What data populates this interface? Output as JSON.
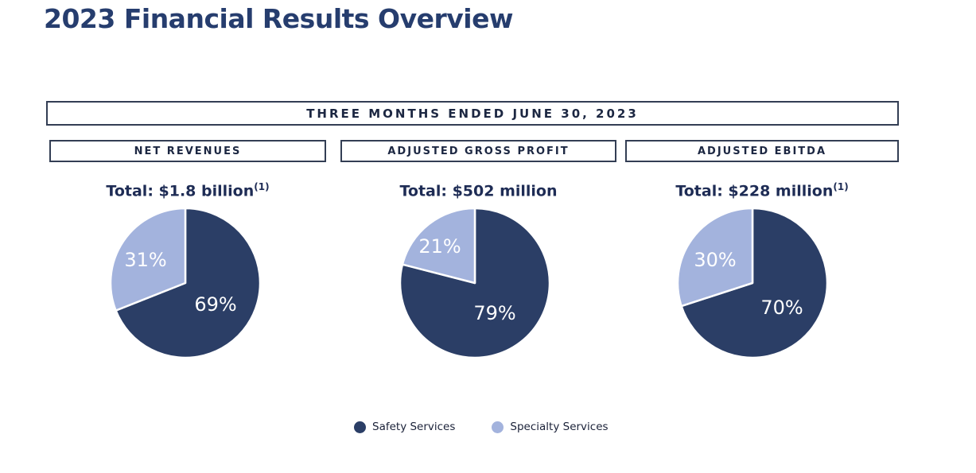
{
  "page": {
    "title": "2023 Financial Results Overview"
  },
  "banner": {
    "label": "THREE MONTHS ENDED JUNE 30, 2023"
  },
  "colors": {
    "safety_services": "#2b3e66",
    "specialty_services": "#a3b3dd",
    "heading_navy": "#1c2742"
  },
  "legend": {
    "items": [
      {
        "label": "Safety Services",
        "color": "#2b3e66"
      },
      {
        "label": "Specialty Services",
        "color": "#a3b3dd"
      }
    ]
  },
  "chart_data": [
    {
      "type": "pie",
      "title": "NET REVENUES",
      "total_label": "Total: $1.8 billion",
      "total_footnote": "(1)",
      "labels": [
        "Safety Services",
        "Specialty Services"
      ],
      "values": [
        69,
        31
      ],
      "unit": "%",
      "colors": [
        "#2b3e66",
        "#a3b3dd"
      ],
      "start_angle_deg": 0,
      "direction": "clockwise",
      "legend_position": "bottom"
    },
    {
      "type": "pie",
      "title": "ADJUSTED GROSS PROFIT",
      "total_label": "Total: $502 million",
      "total_footnote": "",
      "labels": [
        "Safety Services",
        "Specialty Services"
      ],
      "values": [
        79,
        21
      ],
      "unit": "%",
      "colors": [
        "#2b3e66",
        "#a3b3dd"
      ],
      "start_angle_deg": 0,
      "direction": "clockwise",
      "legend_position": "bottom"
    },
    {
      "type": "pie",
      "title": "ADJUSTED EBITDA",
      "total_label": "Total: $228 million",
      "total_footnote": "(1)",
      "labels": [
        "Safety Services",
        "Specialty Services"
      ],
      "values": [
        70,
        30
      ],
      "unit": "%",
      "colors": [
        "#2b3e66",
        "#a3b3dd"
      ],
      "start_angle_deg": 0,
      "direction": "clockwise",
      "legend_position": "bottom"
    }
  ]
}
